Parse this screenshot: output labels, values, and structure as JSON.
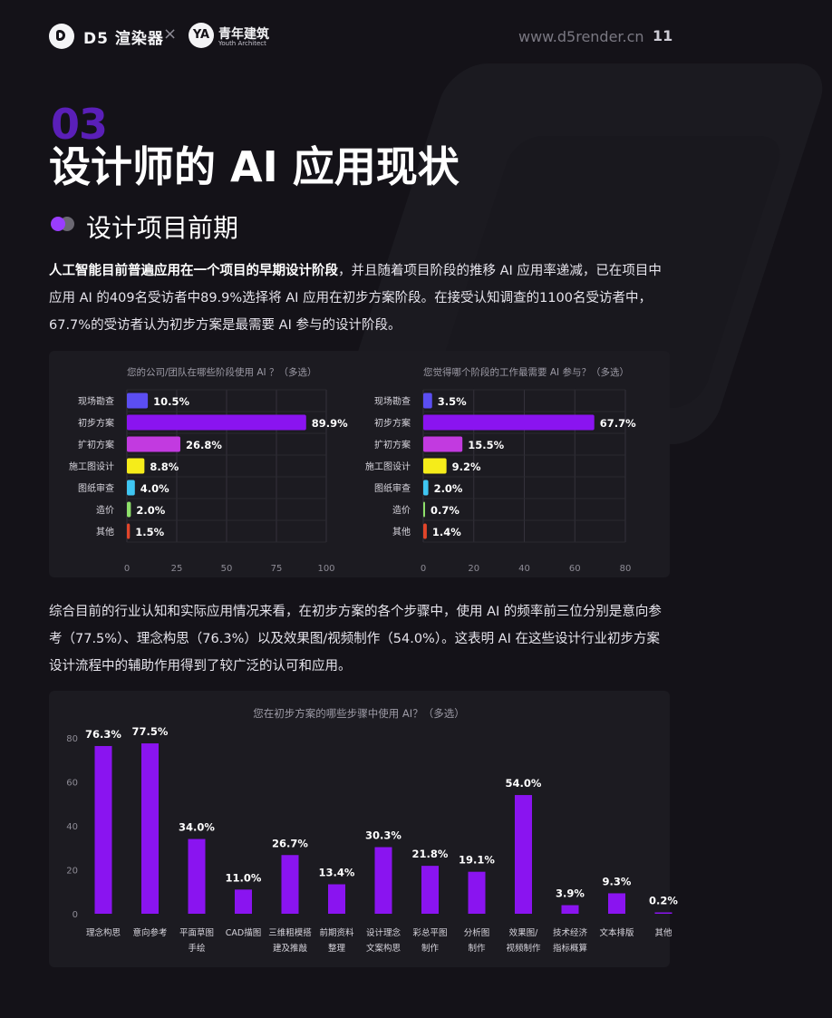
{
  "header": {
    "brand": "D5 渲染器",
    "times": "×",
    "partner_logo": "YA",
    "partner": "青年建筑",
    "partner_sub": "Youth Architect",
    "url": "www.d5render.cn",
    "page_number": "11"
  },
  "section": {
    "number": "03",
    "title": "设计师的 AI 应用现状",
    "subtitle": "设计项目前期"
  },
  "paragraph1": {
    "bold": "人工智能目前普遍应用在一个项目的早期设计阶段",
    "rest": "，并且随着项目阶段的推移 AI 应用率递减，已在项目中应用 AI 的409名受访者中89.9%选择将 AI 应用在初步方案阶段。在接受认知调查的1100名受访者中，67.7%的受访者认为初步方案是最需要 AI 参与的设计阶段。"
  },
  "paragraph2": "综合目前的行业认知和实际应用情况来看，在初步方案的各个步骤中，使用 AI 的频率前三位分别是意向参考（77.5%）、理念构思（76.3%）以及效果图/视频制作（54.0%）。这表明 AI 在这些设计行业初步方案设计流程中的辅助作用得到了较广泛的认可和应用。",
  "colors": {
    "bg": "#141218",
    "accent_purple": "#8a14f0",
    "stage_colors": [
      "#5b4ef2",
      "#8a14f0",
      "#c23ae0",
      "#f5ec1a",
      "#3fc6f2",
      "#8ee06a",
      "#e2452a"
    ]
  },
  "chart_data": [
    {
      "type": "bar",
      "orientation": "horizontal",
      "title": "您的公司/团队在哪些阶段使用 AI ？（多选）",
      "categories": [
        "现场勘查",
        "初步方案",
        "扩初方案",
        "施工图设计",
        "图纸审查",
        "造价",
        "其他"
      ],
      "values": [
        10.5,
        89.9,
        26.8,
        8.8,
        4.0,
        2.0,
        1.5
      ],
      "labels": [
        "10.5%",
        "89.9%",
        "26.8%",
        "8.8%",
        "4.0%",
        "2.0%",
        "1.5%"
      ],
      "xlim": [
        0,
        100
      ],
      "ticks": [
        "0",
        "25",
        "50",
        "75",
        "100"
      ],
      "grid": true
    },
    {
      "type": "bar",
      "orientation": "horizontal",
      "title": "您觉得哪个阶段的工作最需要 AI 参与？（多选）",
      "categories": [
        "现场勘查",
        "初步方案",
        "扩初方案",
        "施工图设计",
        "图纸审查",
        "造价",
        "其他"
      ],
      "values": [
        3.5,
        67.7,
        15.5,
        9.2,
        2.0,
        0.7,
        1.4
      ],
      "labels": [
        "3.5%",
        "67.7%",
        "15.5%",
        "9.2%",
        "2.0%",
        "0.7%",
        "1.4%"
      ],
      "xlim": [
        0,
        80
      ],
      "ticks": [
        "0",
        "20",
        "40",
        "60",
        "80"
      ],
      "grid": true
    },
    {
      "type": "bar",
      "orientation": "vertical",
      "title": "您在初步方案的哪些步骤中使用 AI？（多选）",
      "categories": [
        [
          "理念构思"
        ],
        [
          "意向参考"
        ],
        [
          "平面草图",
          "手绘"
        ],
        [
          "CAD描图"
        ],
        [
          "三维粗模搭",
          "建及推敲"
        ],
        [
          "前期资料",
          "整理"
        ],
        [
          "设计理念",
          "文案构思"
        ],
        [
          "彩总平图",
          "制作"
        ],
        [
          "分析图",
          "制作"
        ],
        [
          "效果图/",
          "视频制作"
        ],
        [
          "技术经济",
          "指标概算"
        ],
        [
          "文本排版"
        ],
        [
          "其他"
        ]
      ],
      "values": [
        76.3,
        77.5,
        34.0,
        11.0,
        26.7,
        13.4,
        30.3,
        21.8,
        19.1,
        54.0,
        3.9,
        9.3,
        0.2
      ],
      "labels": [
        "76.3%",
        "77.5%",
        "34.0%",
        "11.0%",
        "26.7%",
        "13.4%",
        "30.3%",
        "21.8%",
        "19.1%",
        "54.0%",
        "3.9%",
        "9.3%",
        "0.2%"
      ],
      "ylim": [
        0,
        80
      ],
      "ticks": [
        "0",
        "20",
        "40",
        "60",
        "80"
      ],
      "grid": false
    }
  ]
}
